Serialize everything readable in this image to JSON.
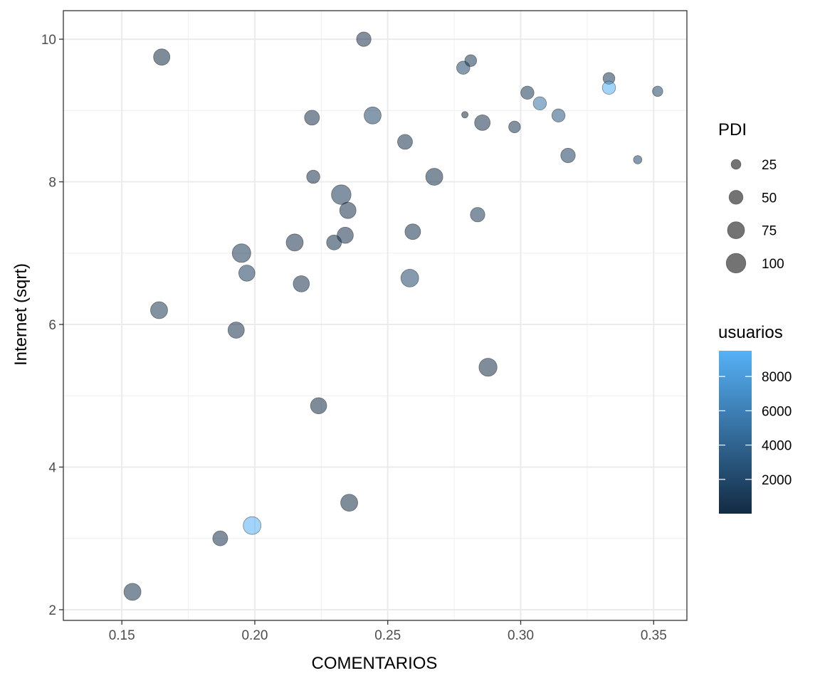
{
  "chart_data": {
    "type": "scatter",
    "xlabel": "COMENTARIOS",
    "ylabel": "Internet (sqrt)",
    "xlim": [
      0.128,
      0.3625
    ],
    "ylim": [
      1.85,
      10.4
    ],
    "x_ticks": [
      0.15,
      0.2,
      0.25,
      0.3,
      0.35
    ],
    "x_tick_labels": [
      "0.15",
      "0.20",
      "0.25",
      "0.30",
      "0.35"
    ],
    "y_ticks": [
      2,
      4,
      6,
      8,
      10
    ],
    "y_tick_labels": [
      "2",
      "4",
      "6",
      "8",
      "10"
    ],
    "grid": true,
    "size_legend": {
      "title": "PDI",
      "entries": [
        {
          "label": "25",
          "value": 25
        },
        {
          "label": "50",
          "value": 50
        },
        {
          "label": "75",
          "value": 75
        },
        {
          "label": "100",
          "value": 100
        }
      ]
    },
    "color_legend": {
      "title": "usuarios",
      "range": [
        0,
        9500
      ],
      "low_color": "#132B43",
      "high_color": "#56B1F7",
      "ticks": [
        2000,
        4000,
        6000,
        8000
      ],
      "tick_labels": [
        "2000",
        "4000",
        "6000",
        "8000"
      ]
    },
    "point_alpha": 0.55,
    "points": [
      {
        "x": 0.154,
        "y": 2.25,
        "size": 75,
        "usuarios": 600
      },
      {
        "x": 0.165,
        "y": 9.75,
        "size": 70,
        "usuarios": 150
      },
      {
        "x": 0.164,
        "y": 6.2,
        "size": 75,
        "usuarios": 900
      },
      {
        "x": 0.187,
        "y": 3.0,
        "size": 58,
        "usuarios": 500
      },
      {
        "x": 0.193,
        "y": 5.92,
        "size": 70,
        "usuarios": 500
      },
      {
        "x": 0.195,
        "y": 7.0,
        "size": 90,
        "usuarios": 1000
      },
      {
        "x": 0.197,
        "y": 6.72,
        "size": 68,
        "usuarios": 1500
      },
      {
        "x": 0.199,
        "y": 3.18,
        "size": 82,
        "usuarios": 9300
      },
      {
        "x": 0.215,
        "y": 7.15,
        "size": 75,
        "usuarios": 500
      },
      {
        "x": 0.2175,
        "y": 6.57,
        "size": 68,
        "usuarios": 500
      },
      {
        "x": 0.2215,
        "y": 8.9,
        "size": 58,
        "usuarios": 500
      },
      {
        "x": 0.222,
        "y": 8.07,
        "size": 45,
        "usuarios": 500
      },
      {
        "x": 0.224,
        "y": 4.86,
        "size": 68,
        "usuarios": 150
      },
      {
        "x": 0.2298,
        "y": 7.15,
        "size": 58,
        "usuarios": 400
      },
      {
        "x": 0.2325,
        "y": 7.82,
        "size": 100,
        "usuarios": 1000
      },
      {
        "x": 0.234,
        "y": 7.25,
        "size": 68,
        "usuarios": 500
      },
      {
        "x": 0.235,
        "y": 7.6,
        "size": 70,
        "usuarios": 500
      },
      {
        "x": 0.2355,
        "y": 3.5,
        "size": 75,
        "usuarios": 300
      },
      {
        "x": 0.241,
        "y": 10.0,
        "size": 55,
        "usuarios": 500
      },
      {
        "x": 0.2443,
        "y": 8.93,
        "size": 75,
        "usuarios": 2000
      },
      {
        "x": 0.2565,
        "y": 8.56,
        "size": 58,
        "usuarios": 500
      },
      {
        "x": 0.2583,
        "y": 6.65,
        "size": 82,
        "usuarios": 2000
      },
      {
        "x": 0.2594,
        "y": 7.3,
        "size": 63,
        "usuarios": 600
      },
      {
        "x": 0.2675,
        "y": 8.07,
        "size": 75,
        "usuarios": 400
      },
      {
        "x": 0.2784,
        "y": 9.6,
        "size": 45,
        "usuarios": 2000
      },
      {
        "x": 0.279,
        "y": 8.94,
        "size": 11,
        "usuarios": 300
      },
      {
        "x": 0.2812,
        "y": 9.7,
        "size": 36,
        "usuarios": 1000
      },
      {
        "x": 0.2838,
        "y": 7.54,
        "size": 55,
        "usuarios": 1000
      },
      {
        "x": 0.2856,
        "y": 8.83,
        "size": 63,
        "usuarios": 500
      },
      {
        "x": 0.2877,
        "y": 5.4,
        "size": 85,
        "usuarios": 300
      },
      {
        "x": 0.2977,
        "y": 8.77,
        "size": 36,
        "usuarios": 800
      },
      {
        "x": 0.3025,
        "y": 9.25,
        "size": 45,
        "usuarios": 1000
      },
      {
        "x": 0.3072,
        "y": 9.1,
        "size": 45,
        "usuarios": 5000
      },
      {
        "x": 0.3142,
        "y": 8.93,
        "size": 45,
        "usuarios": 3000
      },
      {
        "x": 0.3178,
        "y": 8.37,
        "size": 55,
        "usuarios": 1500
      },
      {
        "x": 0.3332,
        "y": 9.45,
        "size": 36,
        "usuarios": 1000
      },
      {
        "x": 0.3332,
        "y": 9.32,
        "size": 45,
        "usuarios": 9300
      },
      {
        "x": 0.344,
        "y": 8.31,
        "size": 18,
        "usuarios": 2000
      },
      {
        "x": 0.3515,
        "y": 9.27,
        "size": 28,
        "usuarios": 2000
      }
    ]
  }
}
